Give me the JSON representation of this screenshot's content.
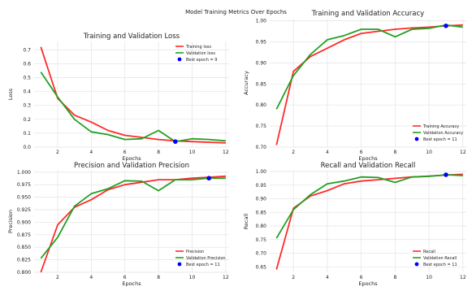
{
  "figure": {
    "suptitle": "Model Training Metrics Over Epochs"
  },
  "chart_data": [
    {
      "type": "line",
      "title": "Training and Validation Loss",
      "xlabel": "Epochs",
      "ylabel": "Loss",
      "xlim": [
        0.6,
        12.2
      ],
      "ylim": [
        0.0,
        0.76
      ],
      "xticks": [
        2,
        4,
        6,
        8,
        10,
        12
      ],
      "yticks": [
        0.0,
        0.1,
        0.2,
        0.3,
        0.4,
        0.5,
        0.6,
        0.7
      ],
      "ytick_labels": [
        "0.0",
        "0.1",
        "0.2",
        "0.3",
        "0.4",
        "0.5",
        "0.6",
        "0.7"
      ],
      "grid": true,
      "legend": "top-right",
      "x": [
        1,
        2,
        3,
        4,
        5,
        6,
        7,
        8,
        9,
        10,
        11,
        12
      ],
      "series": [
        {
          "name": "Training loss",
          "color": "#ff2a2a",
          "values": [
            0.72,
            0.35,
            0.23,
            0.18,
            0.12,
            0.085,
            0.07,
            0.055,
            0.045,
            0.04,
            0.035,
            0.03
          ]
        },
        {
          "name": "Validation loss",
          "color": "#22a022",
          "values": [
            0.54,
            0.36,
            0.2,
            0.11,
            0.09,
            0.055,
            0.06,
            0.12,
            0.04,
            0.06,
            0.055,
            0.045
          ]
        }
      ],
      "best": {
        "label": "Best epoch = 9",
        "x": 9,
        "y": 0.04,
        "color": "#0000ff"
      }
    },
    {
      "type": "line",
      "title": "Training and Validation Accuracy",
      "xlabel": "Epochs",
      "ylabel": "Accuracy",
      "xlim": [
        0.6,
        12.2
      ],
      "ylim": [
        0.7,
        1.005
      ],
      "xticks": [
        2,
        4,
        6,
        8,
        10,
        12
      ],
      "yticks": [
        0.7,
        0.75,
        0.8,
        0.85,
        0.9,
        0.95,
        1.0
      ],
      "ytick_labels": [
        "0.70",
        "0.75",
        "0.80",
        "0.85",
        "0.90",
        "0.95",
        "1.00"
      ],
      "grid": true,
      "legend": "bottom-right",
      "x": [
        1,
        2,
        3,
        4,
        5,
        6,
        7,
        8,
        9,
        10,
        11,
        12
      ],
      "series": [
        {
          "name": "Training Accuracy",
          "color": "#ff2a2a",
          "values": [
            0.705,
            0.88,
            0.915,
            0.935,
            0.955,
            0.97,
            0.975,
            0.98,
            0.983,
            0.985,
            0.988,
            0.99
          ]
        },
        {
          "name": "Validation Accuracy",
          "color": "#22a022",
          "values": [
            0.79,
            0.87,
            0.92,
            0.955,
            0.965,
            0.98,
            0.98,
            0.962,
            0.98,
            0.982,
            0.99,
            0.985
          ]
        }
      ],
      "best": {
        "label": "Best epoch = 11",
        "x": 11,
        "y": 0.988,
        "color": "#0000ff"
      }
    },
    {
      "type": "line",
      "title": "Precision and Validation Precision",
      "xlabel": "Epochs",
      "ylabel": "Precision",
      "xlim": [
        0.6,
        12.2
      ],
      "ylim": [
        0.8,
        1.003
      ],
      "xticks": [
        2,
        4,
        6,
        8,
        10,
        12
      ],
      "yticks": [
        0.8,
        0.825,
        0.85,
        0.875,
        0.9,
        0.925,
        0.95,
        0.975,
        1.0
      ],
      "ytick_labels": [
        "0.800",
        "0.825",
        "0.850",
        "0.875",
        "0.900",
        "0.925",
        "0.950",
        "0.975",
        "1.000"
      ],
      "grid": true,
      "legend": "bottom-right",
      "x": [
        1,
        2,
        3,
        4,
        5,
        6,
        7,
        8,
        9,
        10,
        11,
        12
      ],
      "series": [
        {
          "name": "Precision",
          "color": "#ff2a2a",
          "values": [
            0.8,
            0.895,
            0.93,
            0.945,
            0.965,
            0.975,
            0.98,
            0.985,
            0.985,
            0.988,
            0.99,
            0.992
          ]
        },
        {
          "name": "Validation Precision",
          "color": "#22a022",
          "values": [
            0.828,
            0.87,
            0.932,
            0.957,
            0.967,
            0.983,
            0.982,
            0.963,
            0.985,
            0.985,
            0.988,
            0.988
          ]
        }
      ],
      "best": {
        "label": "Best epoch = 11",
        "x": 11,
        "y": 0.988,
        "color": "#0000ff"
      }
    },
    {
      "type": "line",
      "title": "Recall and Validation Recall",
      "xlabel": "Epochs",
      "ylabel": "Recall",
      "xlim": [
        0.6,
        12.2
      ],
      "ylim": [
        0.63,
        1.003
      ],
      "xticks": [
        2,
        4,
        6,
        8,
        10,
        12
      ],
      "yticks": [
        0.65,
        0.7,
        0.75,
        0.8,
        0.85,
        0.9,
        0.95,
        1.0
      ],
      "ytick_labels": [
        "0.65",
        "0.70",
        "0.75",
        "0.80",
        "0.85",
        "0.90",
        "0.95",
        "1.00"
      ],
      "grid": true,
      "legend": "bottom-right",
      "x": [
        1,
        2,
        3,
        4,
        5,
        6,
        7,
        8,
        9,
        10,
        11,
        12
      ],
      "series": [
        {
          "name": "Recall",
          "color": "#ff2a2a",
          "values": [
            0.64,
            0.865,
            0.91,
            0.93,
            0.955,
            0.965,
            0.97,
            0.975,
            0.98,
            0.983,
            0.987,
            0.99
          ]
        },
        {
          "name": "Validation Recall",
          "color": "#22a022",
          "values": [
            0.755,
            0.86,
            0.915,
            0.955,
            0.965,
            0.98,
            0.978,
            0.96,
            0.98,
            0.982,
            0.988,
            0.985
          ]
        }
      ],
      "best": {
        "label": "Best epoch = 11",
        "x": 11,
        "y": 0.988,
        "color": "#0000ff"
      }
    }
  ]
}
